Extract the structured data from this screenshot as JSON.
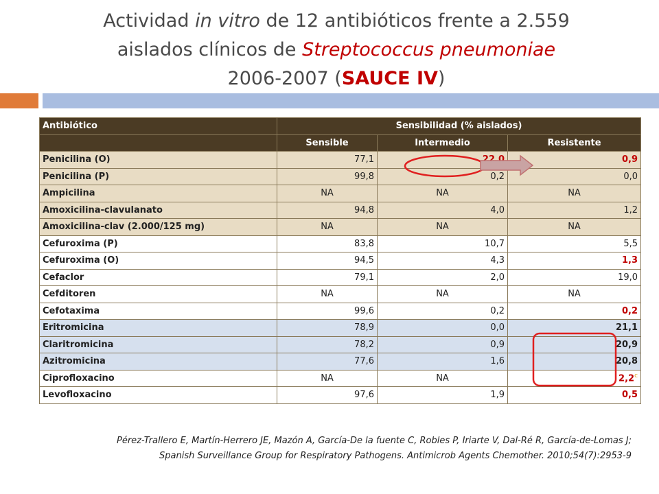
{
  "title": {
    "line1_a": "Actividad ",
    "line1_b": "in vitro",
    "line1_c": " de 12 antibióticos frente a 2.559",
    "line2_a": "aislados clínicos de ",
    "line2_b": "Streptococcus pneumoniae",
    "line3_a": "2006-2007  (",
    "line3_b": "SAUCE IV",
    "line3_c": ")"
  },
  "table": {
    "header_antibiotico": "Antibiótico",
    "header_sensibilidad": "Sensibilidad   (% aislados)",
    "col_sensible": "Sensible",
    "col_intermedio": "Intermedio",
    "col_resistente": "Resistente",
    "rows": [
      {
        "name": "Penicilina (O)",
        "s": "77,1",
        "i": "22,0",
        "r": "0,9"
      },
      {
        "name": "Penicilina (P)",
        "s": "99,8",
        "i": "0,2",
        "r": "0,0"
      },
      {
        "name": "Ampicilina",
        "s": "NA",
        "i": "NA",
        "r": "NA"
      },
      {
        "name": "Amoxicilina-clavulanato",
        "s": "94,8",
        "i": "4,0",
        "r": "1,2"
      },
      {
        "name": "Amoxicilina-clav (2.000/125 mg)",
        "s": "NA",
        "i": "NA",
        "r": "NA"
      },
      {
        "name": "Cefuroxima (P)",
        "s": "83,8",
        "i": "10,7",
        "r": "5,5"
      },
      {
        "name": "Cefuroxima (O)",
        "s": "94,5",
        "i": "4,3",
        "r": "1,3"
      },
      {
        "name": "Cefaclor",
        "s": "79,1",
        "i": "2,0",
        "r": "19,0"
      },
      {
        "name": "Cefditoren",
        "s": "NA",
        "i": "NA",
        "r": "NA"
      },
      {
        "name": "Cefotaxima",
        "s": "99,6",
        "i": "0,2",
        "r": "0,2"
      },
      {
        "name": "Eritromicina",
        "s": "78,9",
        "i": "0,0",
        "r": "21,1"
      },
      {
        "name": "Claritromicina",
        "s": "78,2",
        "i": "0,9",
        "r": "20,9"
      },
      {
        "name": "Azitromicina",
        "s": "77,6",
        "i": "1,6",
        "r": "20,8"
      },
      {
        "name": "Ciprofloxacino",
        "s": "NA",
        "i": "NA",
        "r": "2,2"
      },
      {
        "name": "Levofloxacino",
        "s": "97,6",
        "i": "1,9",
        "r": "0,5"
      }
    ]
  },
  "footnote_mark": "c",
  "reference": {
    "line1": "Pérez-Trallero E, Martín-Herrero JE, Mazón A, García-De la fuente C, Robles P, Iriarte V, Dal-Ré R, García-de-Lomas J;",
    "line2": "Spanish Surveillance Group for Respiratory Pathogens. Antimicrob Agents Chemother. 2010;54(7):2953-9"
  },
  "colors": {
    "header_bg": "#4b3b24",
    "row_tan": "#e8dcc4",
    "row_blue": "#d6e0ee",
    "highlight_red": "#c00000",
    "accent_orange": "#e07b39",
    "accent_blue": "#a9bde0"
  }
}
